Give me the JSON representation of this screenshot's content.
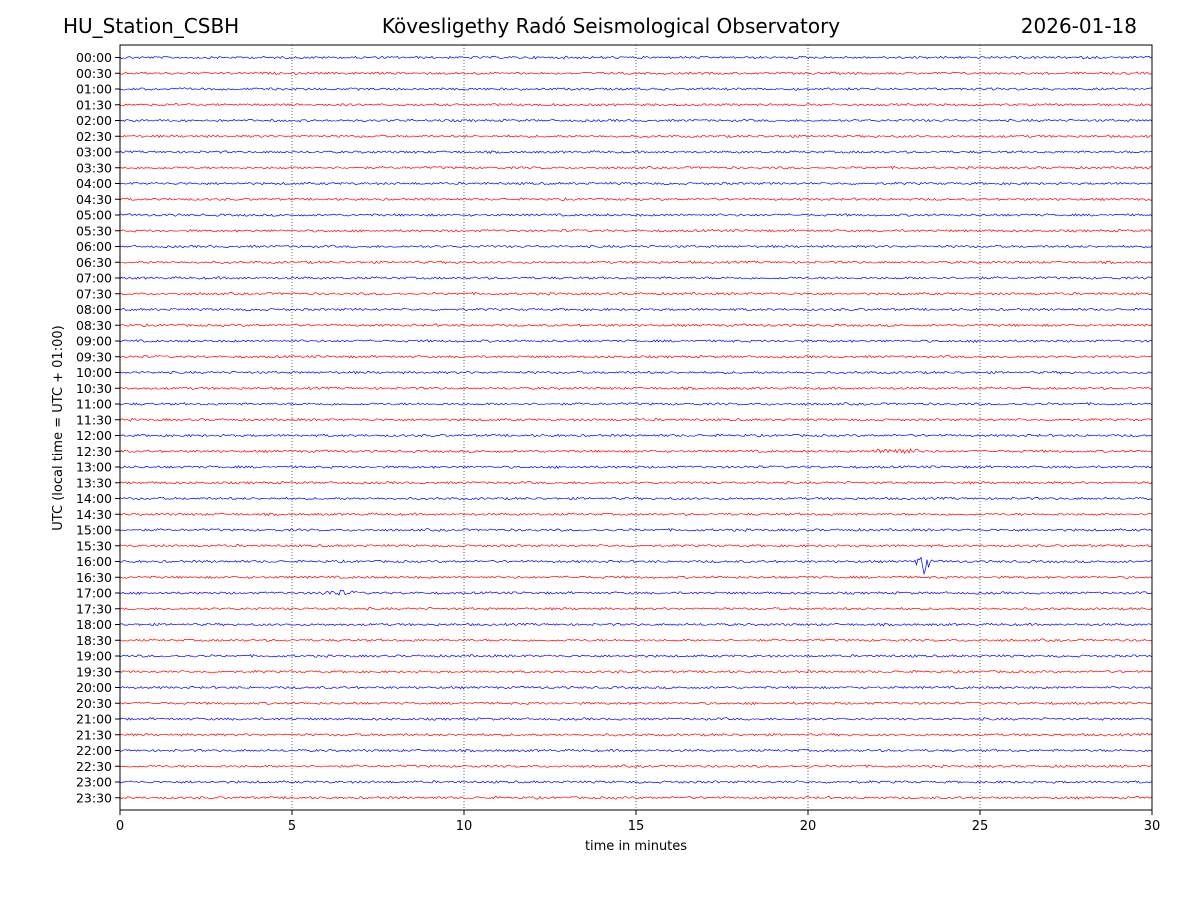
{
  "header": {
    "station": "HU_Station_CSBH",
    "observatory": "Kövesligethy Radó Seismological Observatory",
    "date": "2026-01-18"
  },
  "chart_data": {
    "type": "line",
    "chart_kind": "helicorder (seismogram drum plot)",
    "xlabel": "time in minutes",
    "ylabel": "UTC (local time = UTC + 01:00)",
    "xlim": [
      0,
      30
    ],
    "xticks": [
      0,
      5,
      10,
      15,
      20,
      25,
      30
    ],
    "grid": "vertical dotted lines at 5-minute intervals",
    "trace_colors": [
      "#0000ff",
      "#ff0000"
    ],
    "trace_color_pattern": "alternating: full hours blue, half hours red",
    "rows": [
      "00:00",
      "00:30",
      "01:00",
      "01:30",
      "02:00",
      "02:30",
      "03:00",
      "03:30",
      "04:00",
      "04:30",
      "05:00",
      "05:30",
      "06:00",
      "06:30",
      "07:00",
      "07:30",
      "08:00",
      "08:30",
      "09:00",
      "09:30",
      "10:00",
      "10:30",
      "11:00",
      "11:30",
      "12:00",
      "12:30",
      "13:00",
      "13:30",
      "14:00",
      "14:30",
      "15:00",
      "15:30",
      "16:00",
      "16:30",
      "17:00",
      "17:30",
      "18:00",
      "18:30",
      "19:00",
      "19:30",
      "20:00",
      "20:30",
      "21:00",
      "21:30",
      "22:00",
      "22:30",
      "23:00",
      "23:30"
    ],
    "events": [
      {
        "row": "12:30",
        "start_min": 21.7,
        "end_min": 23.4,
        "amplitude": "moderate"
      },
      {
        "row": "16:00",
        "start_min": 23.1,
        "end_min": 23.6,
        "amplitude": "large spike"
      },
      {
        "row": "17:00",
        "start_min": 5.6,
        "end_min": 7.0,
        "amplitude": "small"
      }
    ]
  }
}
